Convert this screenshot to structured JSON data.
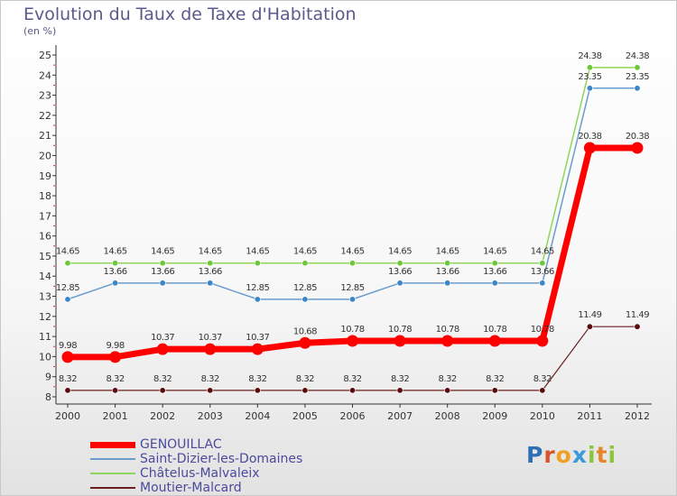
{
  "title": "Evolution du Taux de Taxe d'Habitation",
  "subtitle": "(en %)",
  "logo": "Proxiti",
  "chart_data": {
    "type": "line",
    "title": "Evolution du Taux de Taxe d'Habitation",
    "ylabel": "(en %)",
    "xlabel": "",
    "ylim": [
      8,
      25
    ],
    "yticks": [
      8,
      9,
      10,
      11,
      12,
      13,
      14,
      15,
      16,
      17,
      18,
      19,
      20,
      21,
      22,
      23,
      24,
      25
    ],
    "grid": false,
    "legend_position": "bottom-left",
    "x": [
      "2000",
      "2001",
      "2002",
      "2003",
      "2004",
      "2005",
      "2006",
      "2007",
      "2008",
      "2009",
      "2010",
      "2011",
      "2012"
    ],
    "series": [
      {
        "name": "GENOUILLAC",
        "color": "#ff0000",
        "values": [
          9.98,
          9.98,
          10.37,
          10.37,
          10.37,
          10.68,
          10.78,
          10.78,
          10.78,
          10.78,
          10.78,
          20.38,
          20.38
        ],
        "labels": [
          "9.98",
          "9.98",
          "10.37",
          "10.37",
          "10.37",
          "10.68",
          "10.78",
          "10.78",
          "10.78",
          "10.78",
          "10.78",
          "20.38",
          "20.38"
        ]
      },
      {
        "name": "Saint-Dizier-les-Domaines",
        "color": "#6a9ccc",
        "values": [
          12.85,
          13.66,
          13.66,
          13.66,
          12.85,
          12.85,
          12.85,
          13.66,
          13.66,
          13.66,
          13.66,
          23.35,
          23.35
        ],
        "labels": [
          "12.85",
          "13.66",
          "13.66",
          "13.66",
          "12.85",
          "12.85",
          "12.85",
          "13.66",
          "13.66",
          "13.66",
          "13.66",
          "23.35",
          "23.35"
        ]
      },
      {
        "name": "Châtelus-Malvaleix",
        "color": "#8ed65a",
        "values": [
          14.65,
          14.65,
          14.65,
          14.65,
          14.65,
          14.65,
          14.65,
          14.65,
          14.65,
          14.65,
          14.65,
          24.38,
          24.38
        ],
        "labels": [
          "14.65",
          "14.65",
          "14.65",
          "14.65",
          "14.65",
          "14.65",
          "14.65",
          "14.65",
          "14.65",
          "14.65",
          "14.65",
          "24.38",
          "24.38"
        ]
      },
      {
        "name": "Moutier-Malcard",
        "color": "#6b1f1f",
        "values": [
          8.32,
          8.32,
          8.32,
          8.32,
          8.32,
          8.32,
          8.32,
          8.32,
          8.32,
          8.32,
          8.32,
          11.49,
          11.49
        ],
        "labels": [
          "8.32",
          "8.32",
          "8.32",
          "8.32",
          "8.32",
          "8.32",
          "8.32",
          "8.32",
          "8.32",
          "8.32",
          "8.32",
          "11.49",
          "11.49"
        ]
      }
    ]
  }
}
